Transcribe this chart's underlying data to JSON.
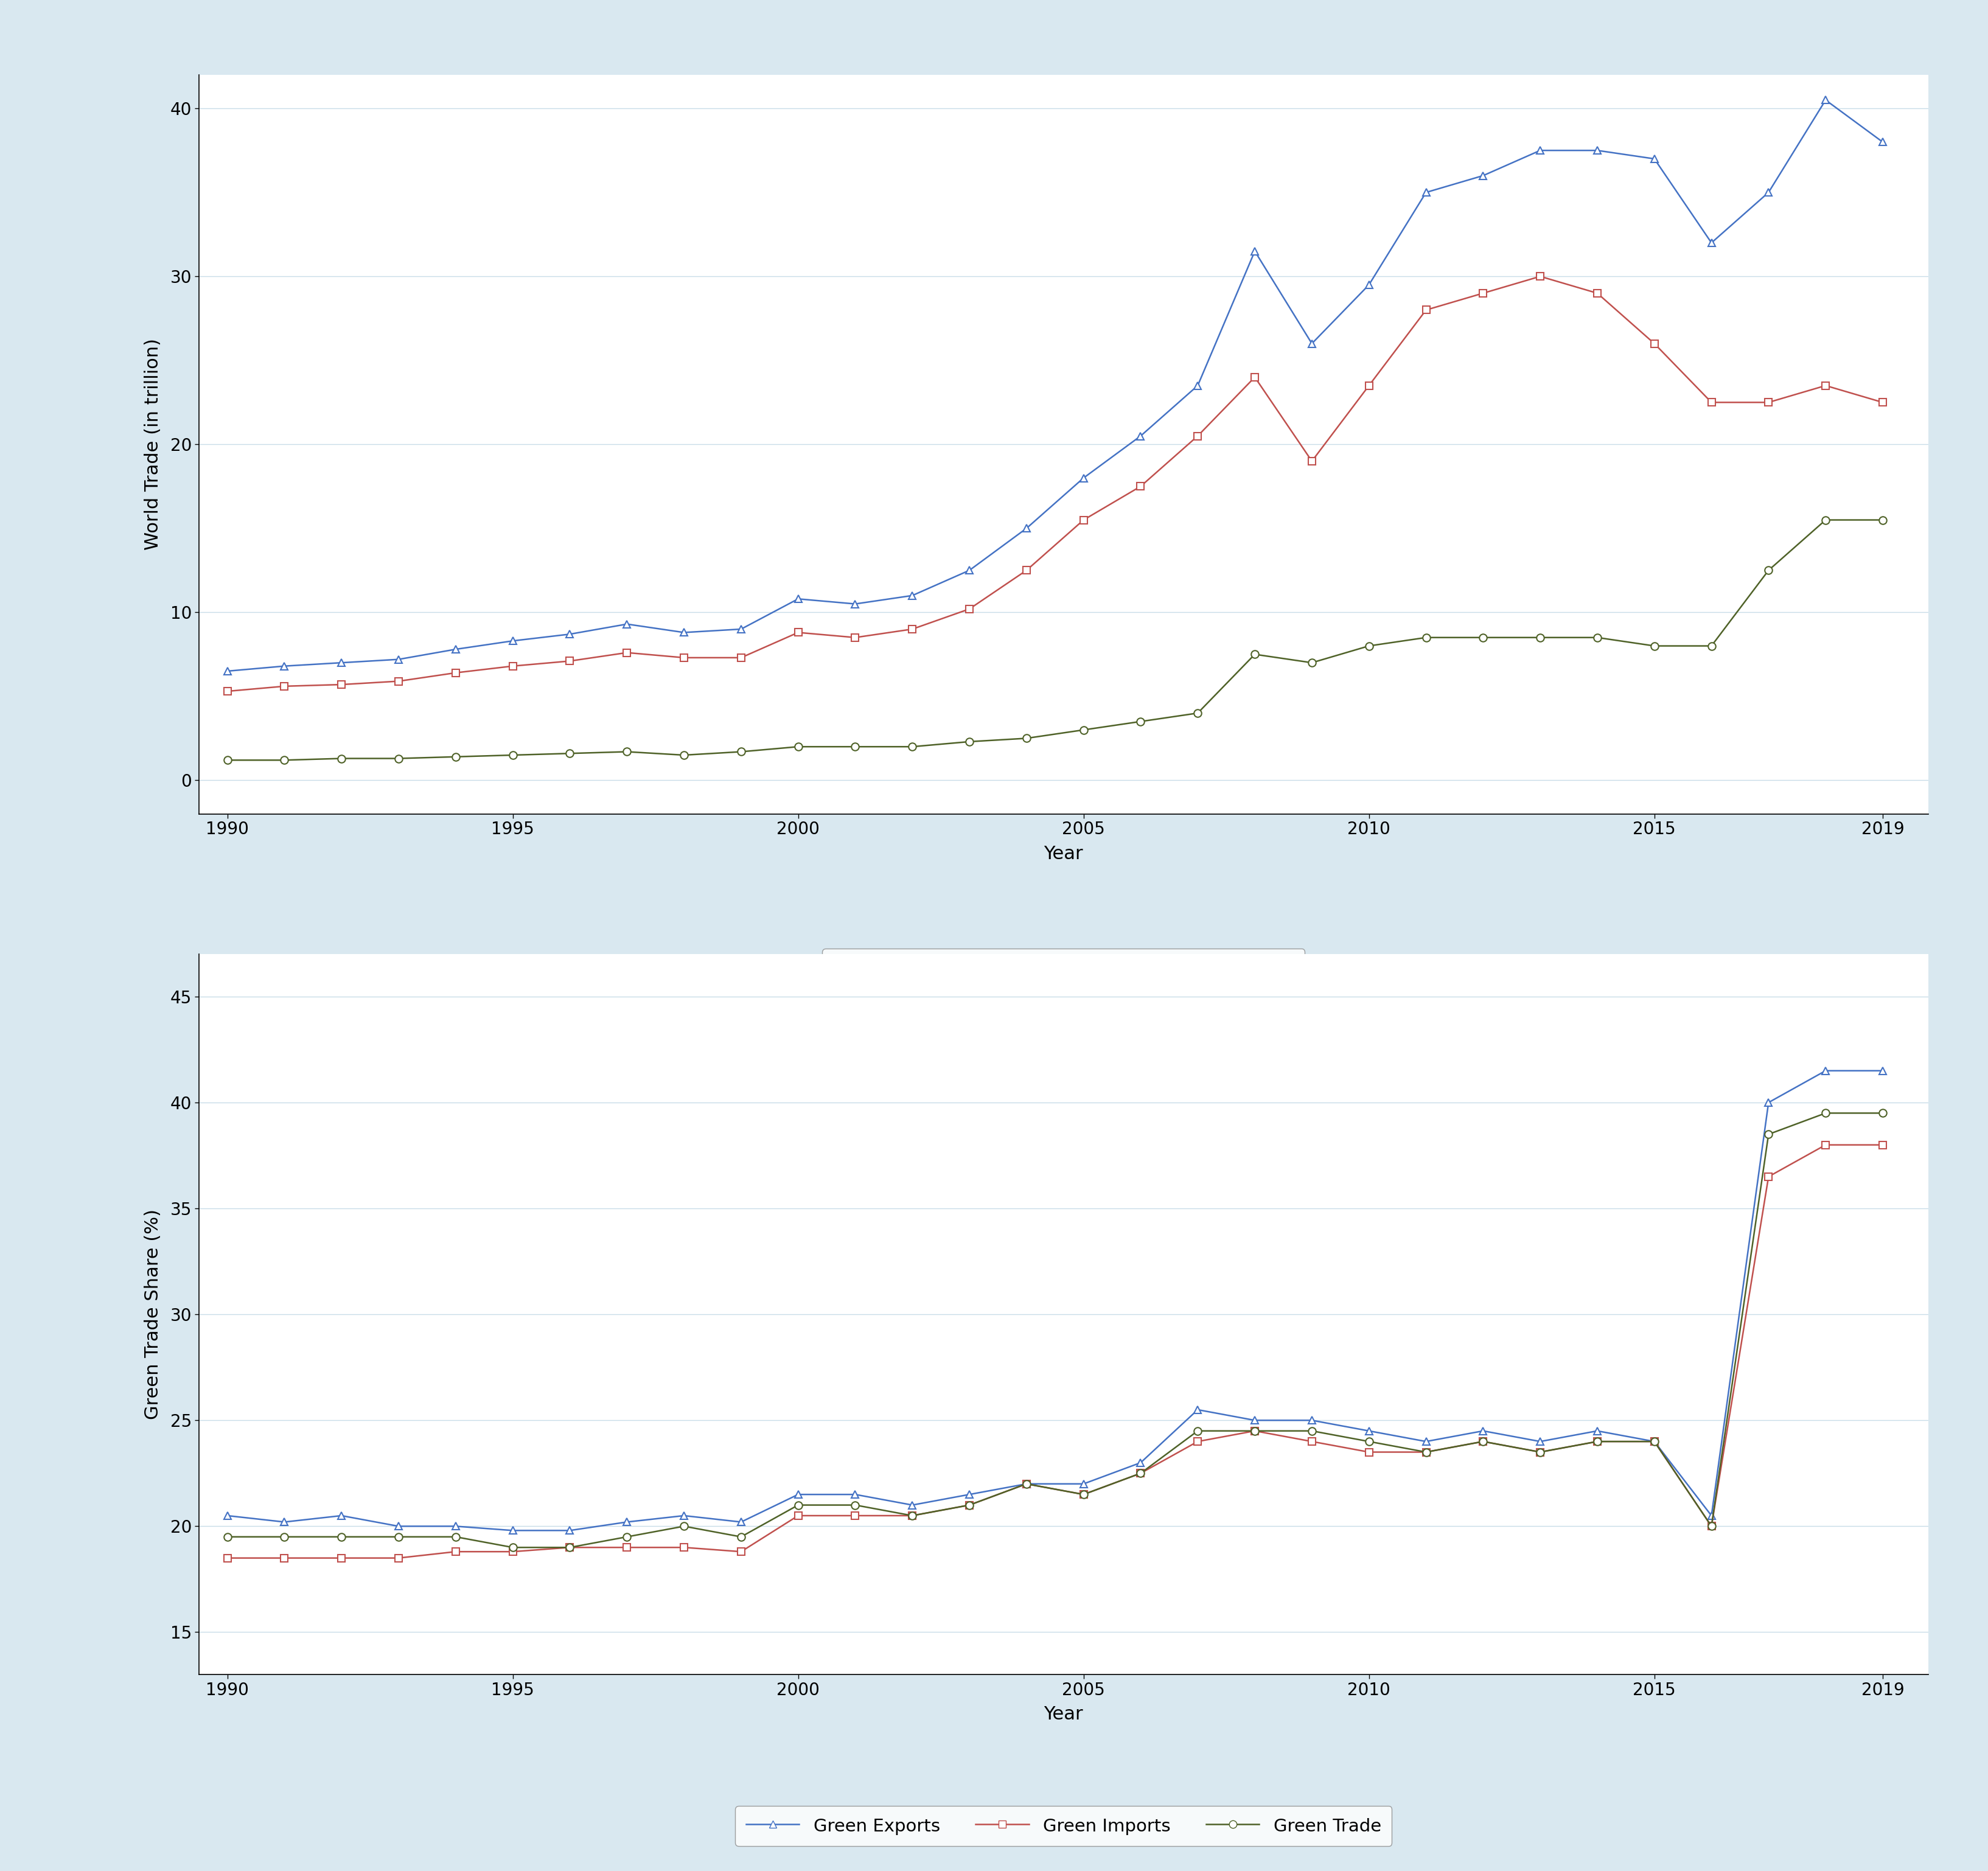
{
  "years": [
    1990,
    1991,
    1992,
    1993,
    1994,
    1995,
    1996,
    1997,
    1998,
    1999,
    2000,
    2001,
    2002,
    2003,
    2004,
    2005,
    2006,
    2007,
    2008,
    2009,
    2010,
    2011,
    2012,
    2013,
    2014,
    2015,
    2016,
    2017,
    2018,
    2019
  ],
  "total": [
    6.5,
    6.8,
    7.0,
    7.2,
    7.8,
    8.3,
    8.7,
    9.3,
    8.8,
    9.0,
    10.8,
    10.5,
    11.0,
    12.5,
    15.0,
    18.0,
    20.5,
    23.5,
    31.5,
    26.0,
    29.5,
    35.0,
    36.0,
    37.5,
    37.5,
    37.0,
    32.0,
    35.0,
    40.5,
    38.0
  ],
  "nongreen": [
    5.3,
    5.6,
    5.7,
    5.9,
    6.4,
    6.8,
    7.1,
    7.6,
    7.3,
    7.3,
    8.8,
    8.5,
    9.0,
    10.2,
    12.5,
    15.5,
    17.5,
    20.5,
    24.0,
    19.0,
    23.5,
    28.0,
    29.0,
    30.0,
    29.0,
    26.0,
    22.5,
    22.5,
    23.5,
    22.5
  ],
  "green": [
    1.2,
    1.2,
    1.3,
    1.3,
    1.4,
    1.5,
    1.6,
    1.7,
    1.5,
    1.7,
    2.0,
    2.0,
    2.0,
    2.3,
    2.5,
    3.0,
    3.5,
    4.0,
    7.5,
    7.0,
    8.0,
    8.5,
    8.5,
    8.5,
    8.5,
    8.0,
    8.0,
    12.5,
    15.5,
    15.5
  ],
  "green_exports": [
    20.5,
    20.2,
    20.5,
    20.0,
    20.0,
    19.8,
    19.8,
    20.2,
    20.5,
    20.2,
    21.5,
    21.5,
    21.0,
    21.5,
    22.0,
    22.0,
    23.0,
    25.5,
    25.0,
    25.0,
    24.5,
    24.0,
    24.5,
    24.0,
    24.5,
    24.0,
    20.5,
    40.0,
    41.5,
    41.5
  ],
  "green_imports": [
    18.5,
    18.5,
    18.5,
    18.5,
    18.8,
    18.8,
    19.0,
    19.0,
    19.0,
    18.8,
    20.5,
    20.5,
    20.5,
    21.0,
    22.0,
    21.5,
    22.5,
    24.0,
    24.5,
    24.0,
    23.5,
    23.5,
    24.0,
    23.5,
    24.0,
    24.0,
    20.0,
    36.5,
    38.0,
    38.0
  ],
  "green_trade": [
    19.5,
    19.5,
    19.5,
    19.5,
    19.5,
    19.0,
    19.0,
    19.5,
    20.0,
    19.5,
    21.0,
    21.0,
    20.5,
    21.0,
    22.0,
    21.5,
    22.5,
    24.5,
    24.5,
    24.5,
    24.0,
    23.5,
    24.0,
    23.5,
    24.0,
    24.0,
    20.0,
    38.5,
    39.5,
    39.5
  ],
  "color_total": "#4472c4",
  "color_nongreen": "#c0504d",
  "color_green": "#4f6228",
  "color_exports": "#4472c4",
  "color_imports": "#c0504d",
  "color_gtrade": "#4f6228",
  "bg_color": "#d9e8f0",
  "plot_bg": "#ffffff",
  "grid_color": "#c8dce8",
  "ylabel1": "World Trade (in trillion)",
  "ylabel2": "Green Trade Share (%)",
  "xlabel": "Year",
  "yticks1": [
    0,
    10,
    20,
    30,
    40
  ],
  "yticks2": [
    15,
    20,
    25,
    30,
    35,
    40,
    45
  ],
  "xlim": [
    1989.5,
    2019.8
  ],
  "ylim1": [
    -2,
    42
  ],
  "ylim2": [
    13,
    47
  ],
  "xticks": [
    1990,
    1995,
    2000,
    2005,
    2010,
    2015,
    2019
  ]
}
